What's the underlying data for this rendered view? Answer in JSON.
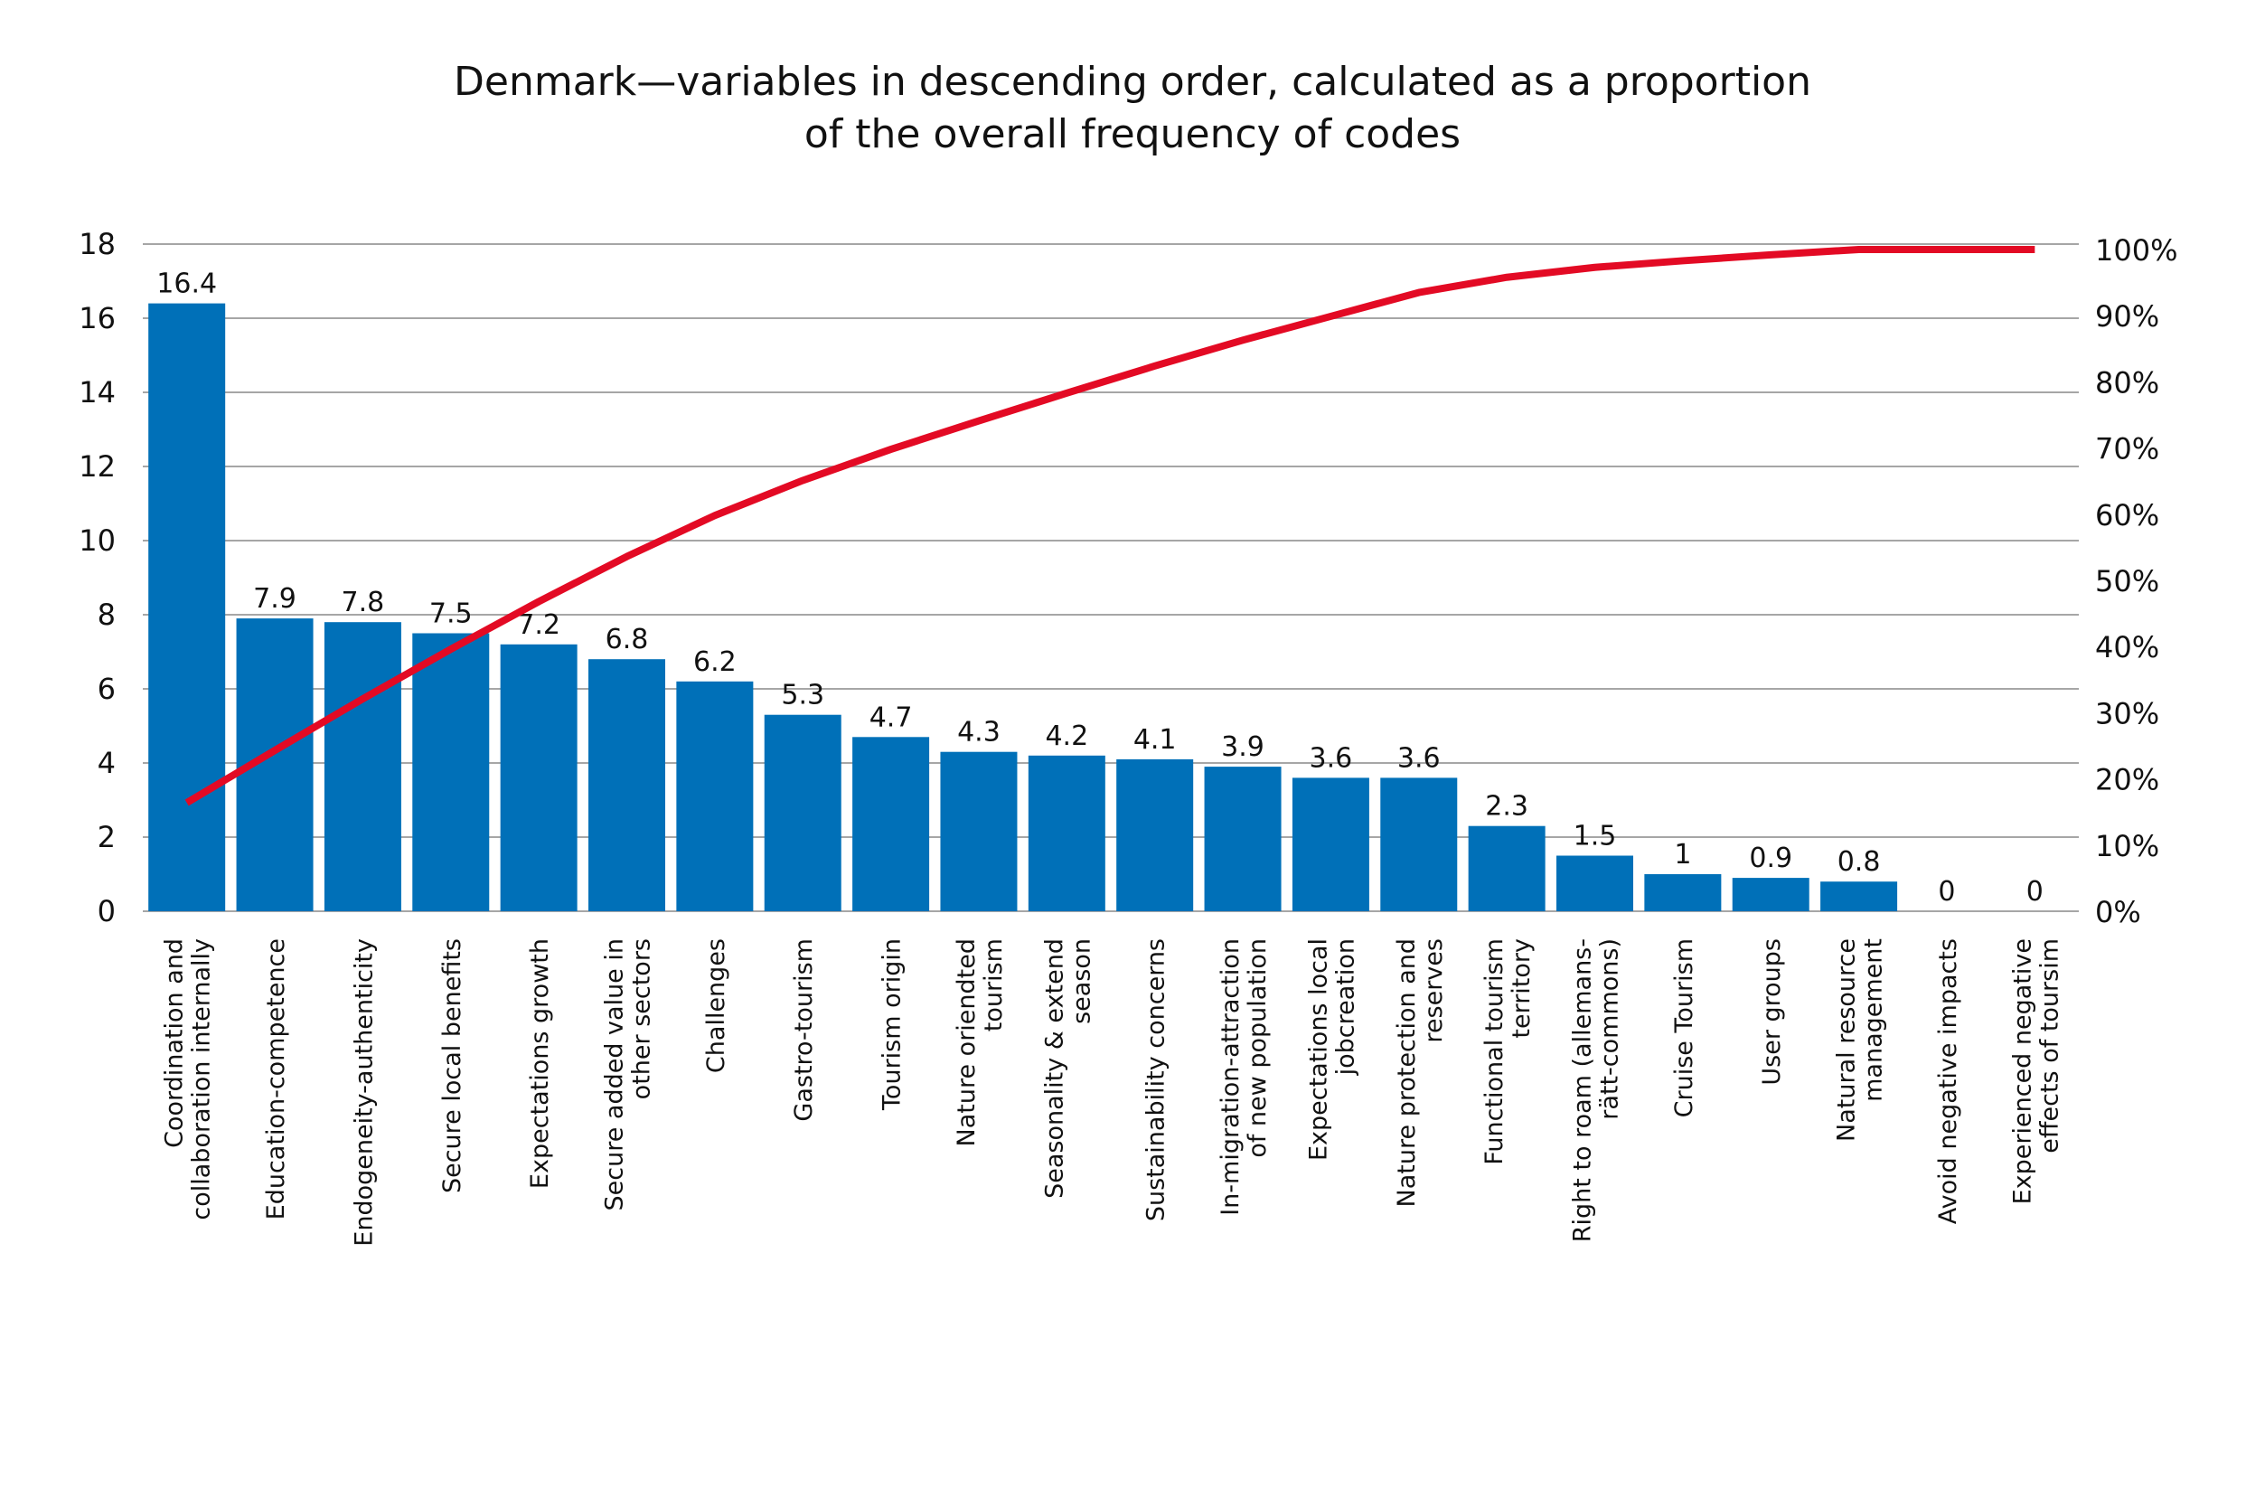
{
  "chart_data": {
    "type": "bar+line",
    "title": [
      "Denmark—variables in descending order, calculated as a proportion",
      "of the overall frequency of codes"
    ],
    "categories": [
      [
        "Coordination and",
        "collaboration internally"
      ],
      [
        "Education-competence"
      ],
      [
        "Endogeneity-authenticity"
      ],
      [
        "Secure local benefits"
      ],
      [
        "Expectations growth"
      ],
      [
        "Secure added value in",
        "other sectors"
      ],
      [
        "Challenges"
      ],
      [
        "Gastro-tourism"
      ],
      [
        "Tourism origin"
      ],
      [
        "Nature oriendted",
        "tourism"
      ],
      [
        "Seasonality & extend",
        "season"
      ],
      [
        "Sustainability concerns"
      ],
      [
        "In-migration-attraction",
        "of new population"
      ],
      [
        "Expectations local",
        "jobcreation"
      ],
      [
        "Nature protection and",
        "reserves"
      ],
      [
        "Functional tourism",
        "territory"
      ],
      [
        "Right to roam (allemans-",
        "rätt-commons)"
      ],
      [
        "Cruise Tourism"
      ],
      [
        "User groups"
      ],
      [
        "Natural resource",
        "management"
      ],
      [
        "Avoid negative impacts"
      ],
      [
        "Experienced negative",
        "effects of toursim"
      ]
    ],
    "values": [
      16.4,
      7.9,
      7.8,
      7.5,
      7.2,
      6.8,
      6.2,
      5.3,
      4.7,
      4.3,
      4.2,
      4.1,
      3.9,
      3.6,
      3.6,
      2.3,
      1.5,
      1,
      0.9,
      0.8,
      0,
      0
    ],
    "cumulative_percent": [
      16.4,
      24.3,
      32.1,
      39.6,
      46.8,
      53.6,
      59.8,
      65.1,
      69.8,
      74.1,
      78.3,
      82.4,
      86.3,
      89.9,
      93.5,
      95.8,
      97.3,
      98.3,
      99.2,
      100,
      100,
      100
    ],
    "ylim": [
      0,
      18
    ],
    "yticks": [
      "0",
      "2",
      "4",
      "6",
      "8",
      "10",
      "12",
      "14",
      "16",
      "18"
    ],
    "y2lim": [
      0,
      100
    ],
    "y2ticks": [
      "0%",
      "10%",
      "20%",
      "30%",
      "40%",
      "50%",
      "60%",
      "70%",
      "80%",
      "90%",
      "100%"
    ],
    "grid": true,
    "bar_color": "#0070b8",
    "line_color": "#e30a24"
  }
}
